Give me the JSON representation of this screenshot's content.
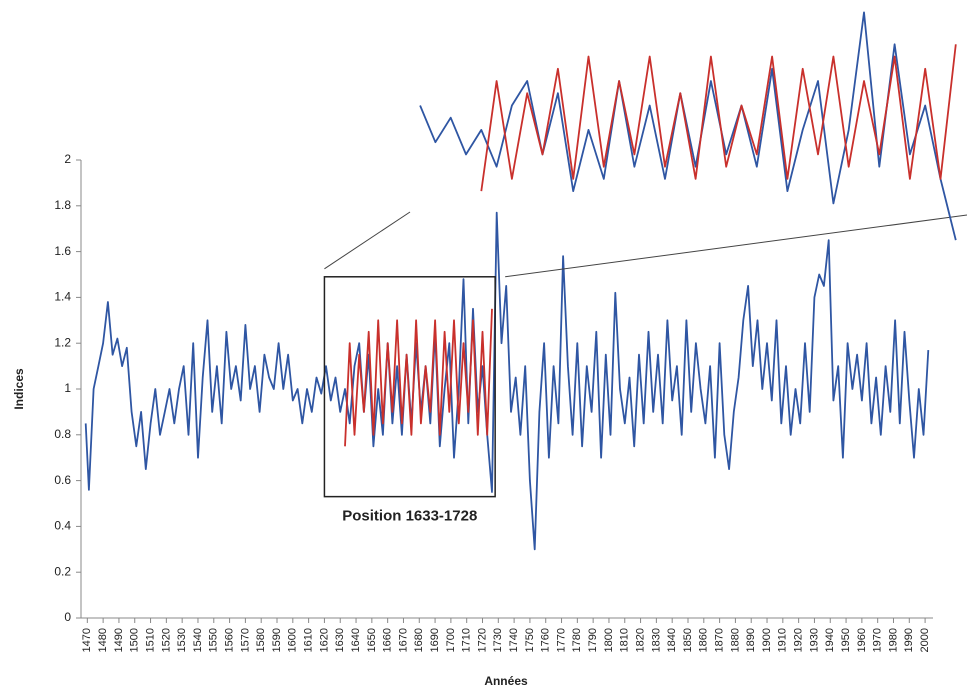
{
  "chart_data": {
    "type": "line",
    "xlabel": "Années",
    "ylabel": "Indices",
    "xlim": [
      1466,
      2005
    ],
    "ylim": [
      0,
      2
    ],
    "yticks": [
      0,
      0.2,
      0.4,
      0.6,
      0.8,
      1,
      1.2,
      1.4,
      1.6,
      1.8,
      2
    ],
    "xticks": [
      1470,
      1480,
      1490,
      1500,
      1510,
      1520,
      1530,
      1540,
      1550,
      1560,
      1570,
      1580,
      1590,
      1600,
      1610,
      1620,
      1630,
      1640,
      1650,
      1660,
      1670,
      1680,
      1690,
      1700,
      1710,
      1720,
      1730,
      1740,
      1750,
      1760,
      1770,
      1780,
      1790,
      1800,
      1810,
      1820,
      1830,
      1840,
      1850,
      1860,
      1870,
      1880,
      1890,
      1900,
      1910,
      1920,
      1930,
      1940,
      1950,
      1960,
      1970,
      1980,
      1990,
      2000
    ],
    "zoom_box": {
      "label": "Position 1633-1728",
      "xlim": [
        1620,
        1728
      ],
      "ylim": [
        0.53,
        1.49
      ]
    },
    "series": [
      {
        "color": "#2f56a3",
        "x": [
          1469,
          1471,
          1474,
          1477,
          1480,
          1483,
          1486,
          1489,
          1492,
          1495,
          1498,
          1501,
          1504,
          1507,
          1510,
          1513,
          1516,
          1519,
          1522,
          1525,
          1528,
          1531,
          1534,
          1537,
          1540,
          1543,
          1546,
          1549,
          1552,
          1555,
          1558,
          1561,
          1564,
          1567,
          1570,
          1573,
          1576,
          1579,
          1582,
          1585,
          1588,
          1591,
          1594,
          1597,
          1600,
          1603,
          1606,
          1609,
          1612,
          1615,
          1618,
          1621,
          1624,
          1627,
          1630,
          1633,
          1636,
          1639,
          1642,
          1645,
          1648,
          1651,
          1654,
          1657,
          1660,
          1663,
          1666,
          1669,
          1672,
          1675,
          1678,
          1681,
          1684,
          1687,
          1690,
          1693,
          1696,
          1699,
          1702,
          1705,
          1708,
          1711,
          1714,
          1717,
          1720,
          1723,
          1726,
          1729,
          1732,
          1735,
          1738,
          1741,
          1744,
          1747,
          1750,
          1753,
          1756,
          1759,
          1762,
          1765,
          1768,
          1771,
          1774,
          1777,
          1780,
          1783,
          1786,
          1789,
          1792,
          1795,
          1798,
          1801,
          1804,
          1807,
          1810,
          1813,
          1816,
          1819,
          1822,
          1825,
          1828,
          1831,
          1834,
          1837,
          1840,
          1843,
          1846,
          1849,
          1852,
          1855,
          1858,
          1861,
          1864,
          1867,
          1870,
          1873,
          1876,
          1879,
          1882,
          1885,
          1888,
          1891,
          1894,
          1897,
          1900,
          1903,
          1906,
          1909,
          1912,
          1915,
          1918,
          1921,
          1924,
          1927,
          1930,
          1933,
          1936,
          1939,
          1942,
          1945,
          1948,
          1951,
          1954,
          1957,
          1960,
          1963,
          1966,
          1969,
          1972,
          1975,
          1978,
          1981,
          1984,
          1987,
          1990,
          1993,
          1996,
          1999,
          2002
        ],
        "values": [
          0.85,
          0.56,
          1.0,
          1.1,
          1.2,
          1.38,
          1.15,
          1.22,
          1.1,
          1.18,
          0.9,
          0.75,
          0.9,
          0.65,
          0.85,
          1.0,
          0.8,
          0.9,
          1.0,
          0.85,
          1.0,
          1.1,
          0.8,
          1.2,
          0.7,
          1.05,
          1.3,
          0.9,
          1.1,
          0.85,
          1.25,
          1.0,
          1.1,
          0.95,
          1.28,
          1.0,
          1.1,
          0.9,
          1.15,
          1.05,
          1.0,
          1.2,
          1.0,
          1.15,
          0.95,
          1.0,
          0.85,
          1.0,
          0.9,
          1.05,
          0.98,
          1.1,
          0.95,
          1.05,
          0.9,
          1.0,
          0.85,
          1.1,
          1.2,
          0.9,
          1.15,
          0.75,
          1.0,
          0.8,
          1.2,
          0.85,
          1.1,
          0.8,
          1.15,
          0.85,
          1.2,
          0.9,
          1.1,
          0.85,
          1.25,
          0.75,
          1.0,
          1.2,
          0.7,
          1.0,
          1.48,
          0.85,
          1.35,
          0.9,
          1.1,
          0.8,
          0.55,
          1.77,
          1.2,
          1.45,
          0.9,
          1.05,
          0.8,
          1.1,
          0.6,
          0.3,
          0.9,
          1.2,
          0.7,
          1.1,
          0.85,
          1.58,
          1.1,
          0.8,
          1.2,
          0.75,
          1.1,
          0.9,
          1.25,
          0.7,
          1.15,
          0.8,
          1.42,
          1.0,
          0.85,
          1.05,
          0.75,
          1.15,
          0.85,
          1.25,
          0.9,
          1.15,
          0.85,
          1.3,
          0.95,
          1.1,
          0.8,
          1.3,
          0.9,
          1.2,
          1.0,
          0.85,
          1.1,
          0.7,
          1.2,
          0.8,
          0.65,
          0.9,
          1.05,
          1.3,
          1.45,
          1.1,
          1.3,
          1.0,
          1.2,
          0.95,
          1.3,
          0.85,
          1.1,
          0.8,
          1.0,
          0.85,
          1.2,
          0.9,
          1.4,
          1.5,
          1.45,
          1.65,
          0.95,
          1.1,
          0.7,
          1.2,
          1.0,
          1.15,
          0.95,
          1.2,
          0.85,
          1.05,
          0.8,
          1.1,
          0.9,
          1.3,
          0.85,
          1.25,
          0.95,
          0.7,
          1.0,
          0.8,
          1.17
        ]
      },
      {
        "color": "#c9302c",
        "x": [
          1633,
          1636,
          1639,
          1642,
          1645,
          1648,
          1651,
          1654,
          1657,
          1660,
          1663,
          1666,
          1669,
          1672,
          1675,
          1678,
          1681,
          1684,
          1687,
          1690,
          1693,
          1696,
          1699,
          1702,
          1705,
          1708,
          1711,
          1714,
          1717,
          1720,
          1723,
          1726
        ],
        "values": [
          0.75,
          1.2,
          0.8,
          1.15,
          0.9,
          1.25,
          0.8,
          1.3,
          0.85,
          1.2,
          0.9,
          1.3,
          0.85,
          1.15,
          0.8,
          1.3,
          0.85,
          1.1,
          0.9,
          1.3,
          0.8,
          1.25,
          0.9,
          1.3,
          0.85,
          1.2,
          0.9,
          1.3,
          0.8,
          1.25,
          0.8,
          1.35
        ]
      }
    ]
  }
}
